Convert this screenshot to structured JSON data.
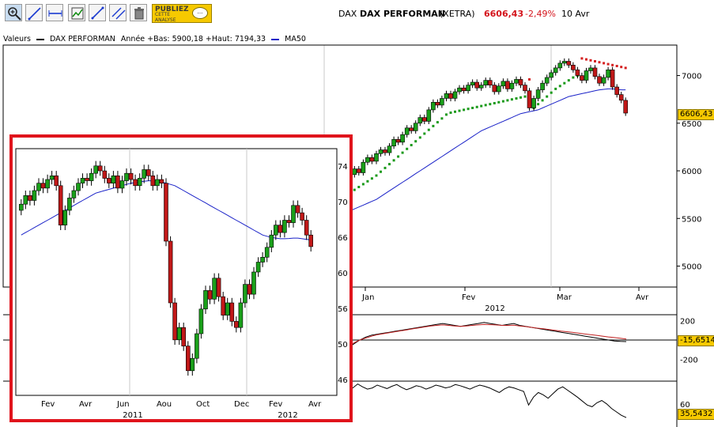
{
  "toolbar": {
    "publiez_title": "PUBLIEZ",
    "publiez_sub": "CETTE ANALYSE",
    "publiez_bubble": "...",
    "tools": [
      "zoom-icon",
      "draw-line-icon",
      "horizontal-line-icon",
      "chart-settings-icon",
      "trend-line-icon",
      "parallel-lines-icon",
      "trash-icon"
    ]
  },
  "header": {
    "market": "DAX",
    "name": "DAX PERFORMAN",
    "exchange": "(XETRA)",
    "price": "6606,43",
    "change": "-2,49%",
    "date": "10 Avr",
    "change_color": "#d4141c"
  },
  "legend": {
    "label": "Valeurs",
    "series": "DAX PERFORMAN",
    "stats": "Année +Bas: 5900,18 +Haut: 7194,33",
    "ma": "MA50",
    "ma_color": "#1a22c8"
  },
  "chart_data": [
    {
      "type": "candlestick",
      "title": "DAX PERFORMAN",
      "x_ticks": [
        "Jan",
        "Fev",
        "Mar",
        "Avr"
      ],
      "x_year": "2012",
      "y_ticks": [
        "7000",
        "6500",
        "6000",
        "5500",
        "5000"
      ],
      "ylim": [
        4780,
        7320
      ],
      "last_value": "6606,43",
      "candles": [
        {
          "o": 5900,
          "c": 5960
        },
        {
          "o": 5960,
          "c": 6020
        },
        {
          "o": 6020,
          "c": 5980
        },
        {
          "o": 5980,
          "c": 6090
        },
        {
          "o": 6090,
          "c": 6140
        },
        {
          "o": 6140,
          "c": 6100
        },
        {
          "o": 6100,
          "c": 6180
        },
        {
          "o": 6180,
          "c": 6220
        },
        {
          "o": 6220,
          "c": 6190
        },
        {
          "o": 6190,
          "c": 6260
        },
        {
          "o": 6260,
          "c": 6330
        },
        {
          "o": 6330,
          "c": 6300
        },
        {
          "o": 6300,
          "c": 6380
        },
        {
          "o": 6380,
          "c": 6450
        },
        {
          "o": 6450,
          "c": 6420
        },
        {
          "o": 6420,
          "c": 6500
        },
        {
          "o": 6500,
          "c": 6560
        },
        {
          "o": 6560,
          "c": 6520
        },
        {
          "o": 6520,
          "c": 6640
        },
        {
          "o": 6640,
          "c": 6720
        },
        {
          "o": 6720,
          "c": 6690
        },
        {
          "o": 6690,
          "c": 6760
        },
        {
          "o": 6760,
          "c": 6810
        },
        {
          "o": 6810,
          "c": 6760
        },
        {
          "o": 6760,
          "c": 6830
        },
        {
          "o": 6830,
          "c": 6870
        },
        {
          "o": 6870,
          "c": 6840
        },
        {
          "o": 6840,
          "c": 6900
        },
        {
          "o": 6900,
          "c": 6930
        },
        {
          "o": 6930,
          "c": 6870
        },
        {
          "o": 6870,
          "c": 6900
        },
        {
          "o": 6900,
          "c": 6950
        },
        {
          "o": 6950,
          "c": 6900
        },
        {
          "o": 6900,
          "c": 6830
        },
        {
          "o": 6830,
          "c": 6890
        },
        {
          "o": 6890,
          "c": 6940
        },
        {
          "o": 6940,
          "c": 6860
        },
        {
          "o": 6860,
          "c": 6920
        },
        {
          "o": 6920,
          "c": 6960
        },
        {
          "o": 6960,
          "c": 6900
        },
        {
          "o": 6900,
          "c": 6840
        },
        {
          "o": 6840,
          "c": 6660
        },
        {
          "o": 6660,
          "c": 6760
        },
        {
          "o": 6760,
          "c": 6850
        },
        {
          "o": 6850,
          "c": 6920
        },
        {
          "o": 6920,
          "c": 6980
        },
        {
          "o": 6980,
          "c": 7030
        },
        {
          "o": 7030,
          "c": 7080
        },
        {
          "o": 7080,
          "c": 7130
        },
        {
          "o": 7130,
          "c": 7150
        },
        {
          "o": 7150,
          "c": 7110
        },
        {
          "o": 7110,
          "c": 7060
        },
        {
          "o": 7060,
          "c": 7000
        },
        {
          "o": 7000,
          "c": 6950
        },
        {
          "o": 6950,
          "c": 7050
        },
        {
          "o": 7050,
          "c": 7080
        },
        {
          "o": 7080,
          "c": 6990
        },
        {
          "o": 6990,
          "c": 6920
        },
        {
          "o": 6920,
          "c": 6980
        },
        {
          "o": 6980,
          "c": 7060
        },
        {
          "o": 7060,
          "c": 6880
        },
        {
          "o": 6880,
          "c": 6800
        },
        {
          "o": 6800,
          "c": 6740
        },
        {
          "o": 6740,
          "c": 6606
        }
      ],
      "ma50": [
        5580,
        5600,
        5620,
        5640,
        5660,
        5680,
        5700,
        5730,
        5760,
        5790,
        5820,
        5850,
        5880,
        5910,
        5940,
        5970,
        6000,
        6030,
        6060,
        6090,
        6120,
        6150,
        6180,
        6210,
        6240,
        6270,
        6300,
        6330,
        6360,
        6390,
        6420,
        6440,
        6460,
        6480,
        6500,
        6520,
        6540,
        6560,
        6580,
        6600,
        6610,
        6620,
        6630,
        6640,
        6660,
        6680,
        6700,
        6720,
        6740,
        6760,
        6780,
        6790,
        6800,
        6810,
        6820,
        6830,
        6840,
        6850,
        6855,
        6860,
        6860,
        6855,
        6850,
        6850
      ],
      "sar_below": [
        5780,
        5800,
        5830,
        5860,
        5890,
        5920,
        5950,
        5990,
        6030,
        6070,
        6110,
        6150,
        6190,
        6230,
        6270,
        6310,
        6350,
        6390,
        6430,
        6470,
        6510,
        6550,
        6590,
        6610,
        6620,
        6630,
        6640,
        6650,
        6660,
        6670,
        6680,
        6690,
        6700,
        6710,
        6720,
        6730,
        6740,
        6750,
        6760,
        6770,
        6780,
        null,
        6660,
        6700,
        6740,
        6780,
        6820,
        6860,
        6890,
        6920,
        6950,
        6980,
        7000
      ],
      "sar_above": [
        null,
        null,
        null,
        null,
        null,
        null,
        null,
        null,
        null,
        null,
        null,
        null,
        null,
        null,
        null,
        null,
        null,
        null,
        null,
        null,
        null,
        null,
        null,
        null,
        null,
        null,
        null,
        null,
        null,
        null,
        null,
        null,
        null,
        null,
        null,
        null,
        null,
        null,
        null,
        null,
        null,
        6960,
        null,
        null,
        null,
        null,
        null,
        null,
        null,
        null,
        null,
        null,
        null,
        7180,
        7170,
        7160,
        7150,
        7140,
        7130,
        7120,
        7110,
        7100,
        7090,
        7080
      ]
    },
    {
      "type": "line",
      "title": "",
      "y_ticks": [
        "200",
        "0",
        "-200"
      ],
      "ylim": [
        -260,
        260
      ],
      "last_value": "-15,6514",
      "series": [
        {
          "name": "",
          "color": "#000000",
          "values": [
            -80,
            -40,
            0,
            30,
            50,
            60,
            70,
            80,
            90,
            100,
            110,
            120,
            130,
            140,
            150,
            160,
            170,
            160,
            150,
            140,
            150,
            160,
            170,
            180,
            170,
            160,
            150,
            160,
            170,
            150,
            140,
            130,
            120,
            110,
            100,
            90,
            80,
            70,
            60,
            50,
            40,
            30,
            20,
            10,
            0,
            -10,
            -15,
            -16
          ]
        },
        {
          "name": "",
          "color": "#c02020",
          "values": [
            -60,
            -30,
            0,
            20,
            40,
            55,
            65,
            75,
            85,
            95,
            105,
            115,
            125,
            135,
            145,
            150,
            155,
            150,
            145,
            140,
            145,
            150,
            155,
            160,
            158,
            155,
            150,
            150,
            152,
            145,
            138,
            130,
            122,
            115,
            108,
            100,
            92,
            85,
            78,
            70,
            62,
            55,
            48,
            40,
            32,
            25,
            18,
            10
          ]
        }
      ]
    },
    {
      "type": "line",
      "title": "",
      "y_ticks": [
        "60"
      ],
      "ylim": [
        25,
        100
      ],
      "last_value": "35,5432",
      "series": [
        {
          "name": "",
          "color": "#000000",
          "values": [
            92,
            88,
            95,
            90,
            86,
            88,
            93,
            90,
            87,
            91,
            94,
            89,
            85,
            88,
            92,
            90,
            86,
            89,
            93,
            91,
            88,
            90,
            94,
            92,
            89,
            86,
            90,
            93,
            91,
            88,
            84,
            80,
            86,
            90,
            88,
            85,
            82,
            58,
            72,
            80,
            76,
            70,
            78,
            86,
            90,
            84,
            78,
            72,
            65,
            58,
            55,
            62,
            66,
            60,
            52,
            46,
            40,
            36
          ]
        }
      ]
    },
    {
      "type": "candlestick",
      "title": "",
      "x_ticks": [
        "Fev",
        "Avr",
        "Jun",
        "Aou",
        "Oct",
        "Dec",
        "Fev",
        "Avr"
      ],
      "x_years": [
        "2011",
        "2012"
      ],
      "y_ticks": [
        "74",
        "70",
        "66",
        "60",
        "56",
        "50",
        "46"
      ],
      "candles": [
        {
          "o": 6900,
          "c": 6950
        },
        {
          "o": 6950,
          "c": 7020
        },
        {
          "o": 7020,
          "c": 6980
        },
        {
          "o": 6980,
          "c": 7060
        },
        {
          "o": 7060,
          "c": 7120
        },
        {
          "o": 7120,
          "c": 7080
        },
        {
          "o": 7080,
          "c": 7150
        },
        {
          "o": 7150,
          "c": 7180
        },
        {
          "o": 7180,
          "c": 7100
        },
        {
          "o": 7100,
          "c": 6780
        },
        {
          "o": 6780,
          "c": 6900
        },
        {
          "o": 6900,
          "c": 7000
        },
        {
          "o": 7000,
          "c": 7060
        },
        {
          "o": 7060,
          "c": 7120
        },
        {
          "o": 7120,
          "c": 7160
        },
        {
          "o": 7160,
          "c": 7140
        },
        {
          "o": 7140,
          "c": 7200
        },
        {
          "o": 7200,
          "c": 7260
        },
        {
          "o": 7260,
          "c": 7220
        },
        {
          "o": 7220,
          "c": 7160
        },
        {
          "o": 7160,
          "c": 7120
        },
        {
          "o": 7120,
          "c": 7180
        },
        {
          "o": 7180,
          "c": 7080
        },
        {
          "o": 7080,
          "c": 7140
        },
        {
          "o": 7140,
          "c": 7200
        },
        {
          "o": 7200,
          "c": 7150
        },
        {
          "o": 7150,
          "c": 7100
        },
        {
          "o": 7100,
          "c": 7160
        },
        {
          "o": 7160,
          "c": 7230
        },
        {
          "o": 7230,
          "c": 7180
        },
        {
          "o": 7180,
          "c": 7100
        },
        {
          "o": 7100,
          "c": 7150
        },
        {
          "o": 7150,
          "c": 7120
        },
        {
          "o": 7120,
          "c": 6650
        },
        {
          "o": 6650,
          "c": 6150
        },
        {
          "o": 6150,
          "c": 5850
        },
        {
          "o": 5850,
          "c": 5950
        },
        {
          "o": 5950,
          "c": 5800
        },
        {
          "o": 5800,
          "c": 5600
        },
        {
          "o": 5600,
          "c": 5700
        },
        {
          "o": 5700,
          "c": 5900
        },
        {
          "o": 5900,
          "c": 6100
        },
        {
          "o": 6100,
          "c": 6250
        },
        {
          "o": 6250,
          "c": 6180
        },
        {
          "o": 6180,
          "c": 6350
        },
        {
          "o": 6350,
          "c": 6200
        },
        {
          "o": 6200,
          "c": 6050
        },
        {
          "o": 6050,
          "c": 6150
        },
        {
          "o": 6150,
          "c": 6000
        },
        {
          "o": 6000,
          "c": 5950
        },
        {
          "o": 5950,
          "c": 6150
        },
        {
          "o": 6150,
          "c": 6300
        },
        {
          "o": 6300,
          "c": 6220
        },
        {
          "o": 6220,
          "c": 6400
        },
        {
          "o": 6400,
          "c": 6480
        },
        {
          "o": 6480,
          "c": 6520
        },
        {
          "o": 6520,
          "c": 6600
        },
        {
          "o": 6600,
          "c": 6700
        },
        {
          "o": 6700,
          "c": 6780
        },
        {
          "o": 6780,
          "c": 6720
        },
        {
          "o": 6720,
          "c": 6820
        },
        {
          "o": 6820,
          "c": 6800
        },
        {
          "o": 6800,
          "c": 6940
        },
        {
          "o": 6940,
          "c": 6880
        },
        {
          "o": 6880,
          "c": 6820
        },
        {
          "o": 6820,
          "c": 6700
        },
        {
          "o": 6700,
          "c": 6606
        }
      ],
      "ma50": [
        6700,
        6720,
        6740,
        6760,
        6780,
        6800,
        6820,
        6840,
        6860,
        6880,
        6900,
        6920,
        6940,
        6960,
        6980,
        7000,
        7020,
        7040,
        7050,
        7060,
        7070,
        7080,
        7090,
        7100,
        7110,
        7120,
        7125,
        7130,
        7135,
        7140,
        7140,
        7135,
        7130,
        7120,
        7110,
        7100,
        7080,
        7060,
        7040,
        7020,
        7000,
        6980,
        6960,
        6940,
        6920,
        6900,
        6880,
        6860,
        6840,
        6820,
        6800,
        6780,
        6760,
        6740,
        6720,
        6700,
        6690,
        6680,
        6675,
        6670,
        6670,
        6672,
        6675,
        6675,
        6670,
        6665,
        6660
      ]
    }
  ]
}
